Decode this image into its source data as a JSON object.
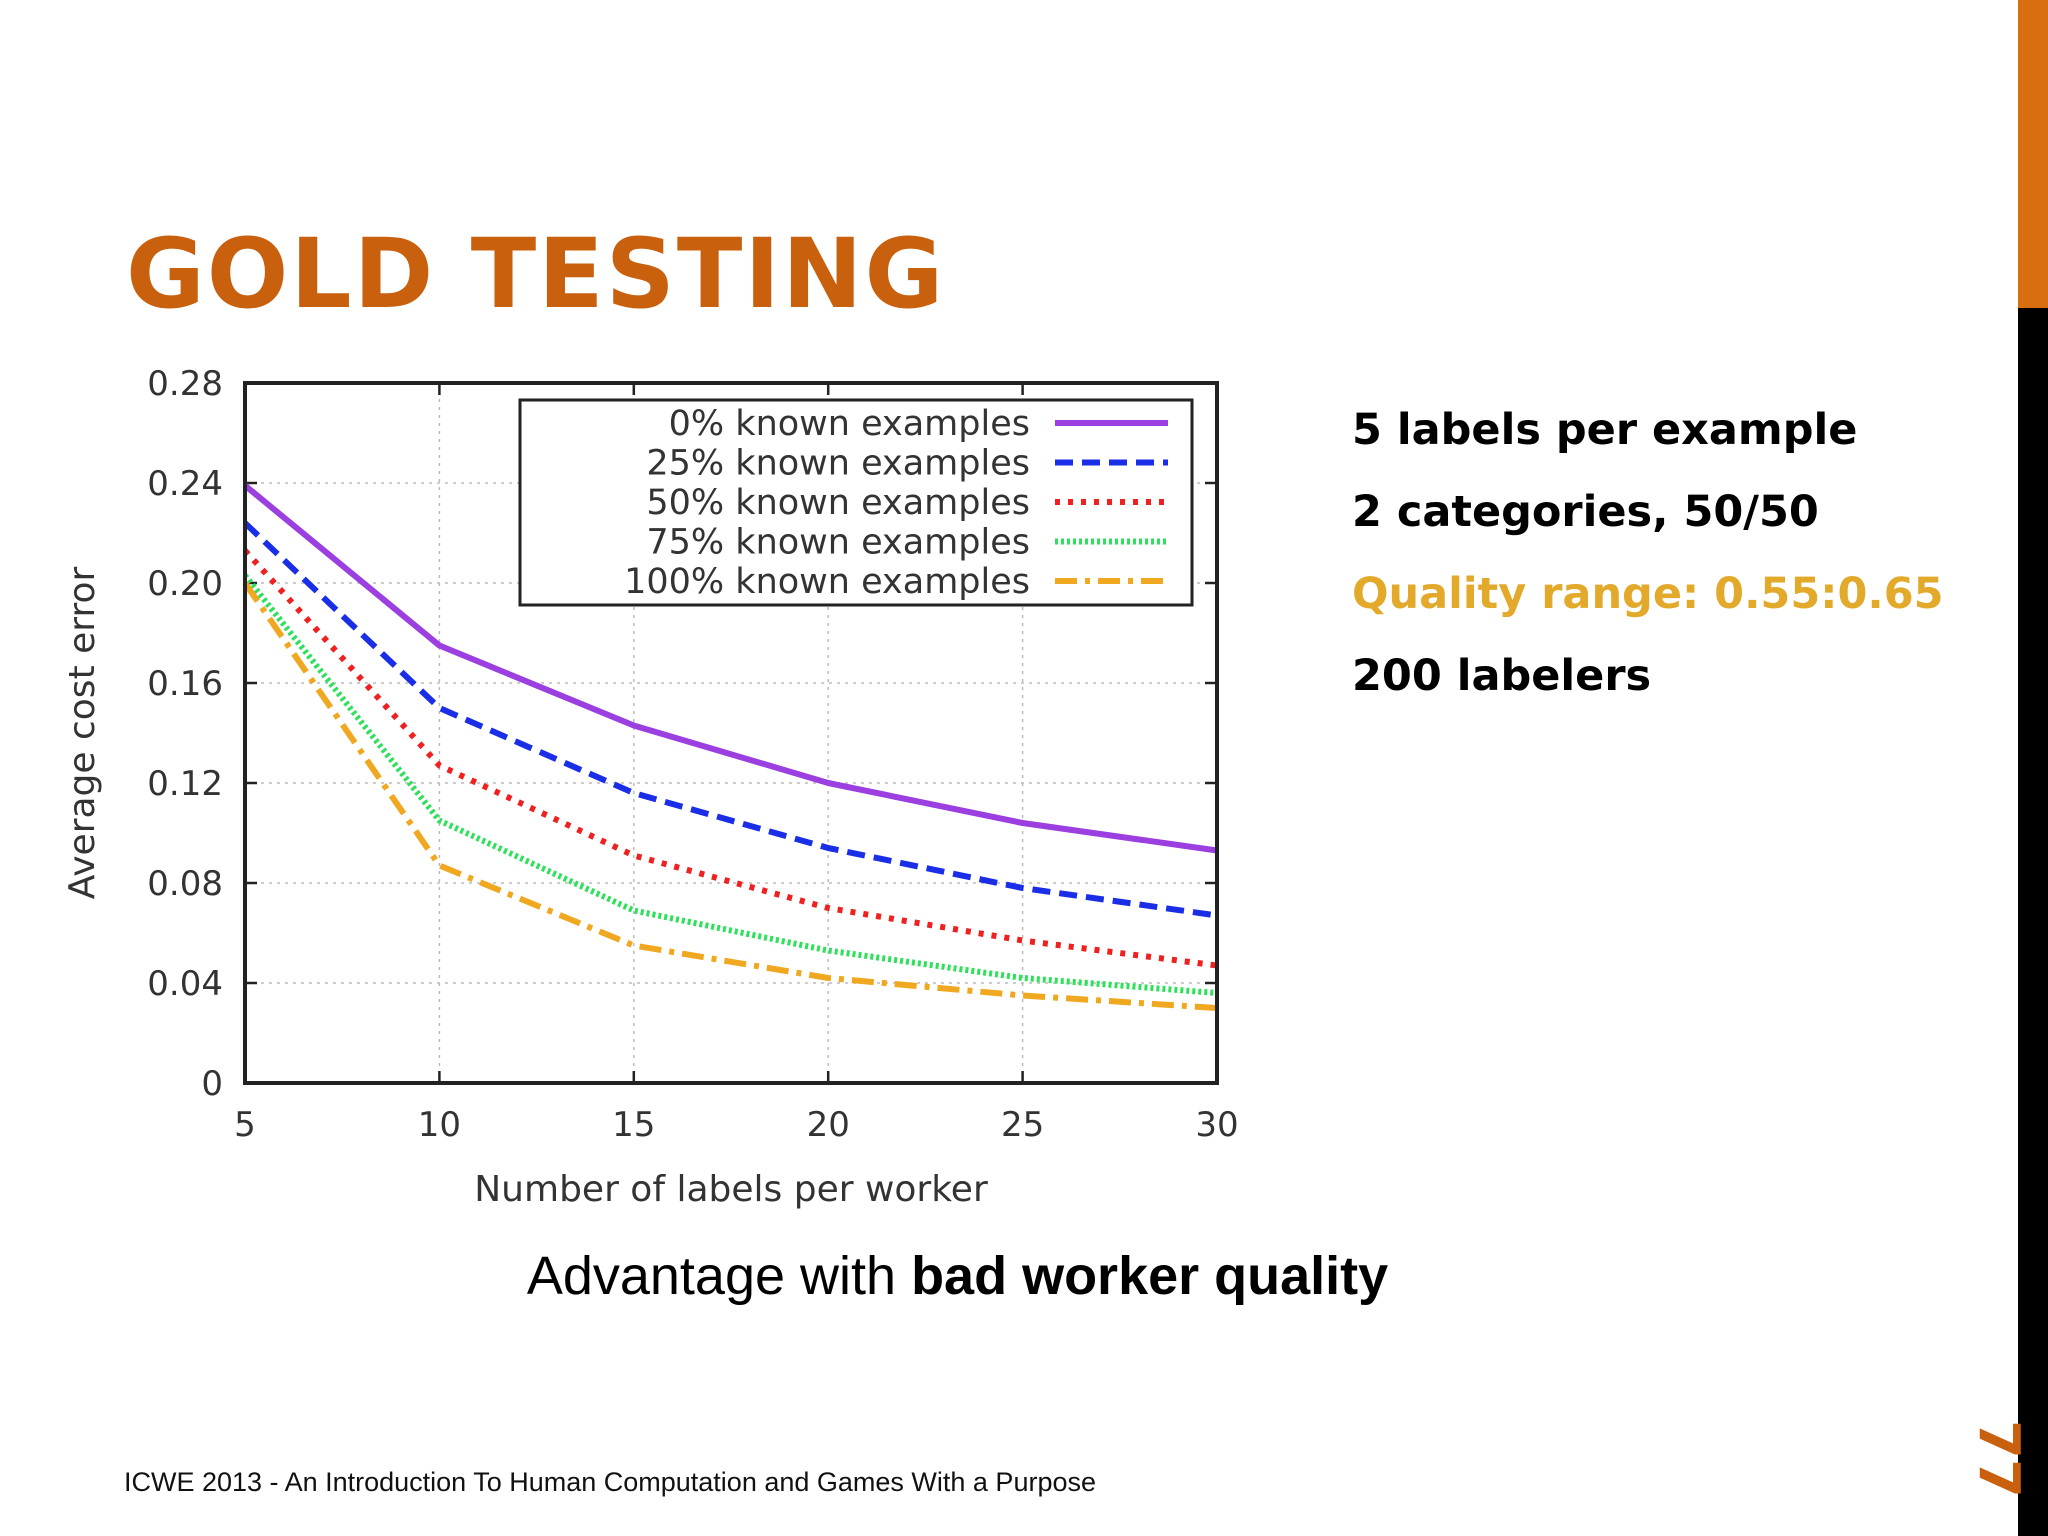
{
  "slide": {
    "title": "GOLD TESTING",
    "info_items": [
      {
        "text": "5 labels per example",
        "highlight": false
      },
      {
        "text": "2 categories, 50/50",
        "highlight": false
      },
      {
        "text": "Quality range: 0.55:0.65",
        "highlight": true
      },
      {
        "text": "200 labelers",
        "highlight": false
      }
    ],
    "caption_normal": "Advantage with ",
    "caption_bold": "bad worker quality",
    "footer": "ICWE 2013 - An Introduction To Human Computation and Games With a Purpose",
    "page_number": "77",
    "accent_color": "#d86e10",
    "highlight_color": "#e3a92b"
  },
  "chart_data": {
    "type": "line",
    "xlabel": "Number of labels per worker",
    "ylabel": "Average cost error",
    "xlim": [
      5,
      30
    ],
    "ylim": [
      0,
      0.28
    ],
    "x": [
      5,
      10,
      15,
      20,
      25,
      30
    ],
    "xticks": [
      "5",
      "10",
      "15",
      "20",
      "25",
      "30"
    ],
    "yticks": [
      "0",
      "0.04",
      "0.08",
      "0.12",
      "0.16",
      "0.20",
      "0.24",
      "0.28"
    ],
    "grid": true,
    "legend_position": "top-right",
    "series": [
      {
        "name": "0% known examples",
        "color": "#9b3fe0",
        "dash": "solid",
        "values": [
          0.239,
          0.175,
          0.143,
          0.12,
          0.104,
          0.093
        ]
      },
      {
        "name": "25% known examples",
        "color": "#1a2ee8",
        "dash": "dashed",
        "values": [
          0.224,
          0.15,
          0.116,
          0.094,
          0.078,
          0.067
        ]
      },
      {
        "name": "50% known examples",
        "color": "#ee2020",
        "dash": "dotted",
        "values": [
          0.213,
          0.127,
          0.091,
          0.07,
          0.057,
          0.047
        ]
      },
      {
        "name": "75% known examples",
        "color": "#2ee05a",
        "dash": "dense-dotted",
        "values": [
          0.203,
          0.105,
          0.069,
          0.053,
          0.042,
          0.036
        ]
      },
      {
        "name": "100% known examples",
        "color": "#f0a820",
        "dash": "dash-dot",
        "values": [
          0.2,
          0.087,
          0.055,
          0.042,
          0.035,
          0.03
        ]
      }
    ]
  }
}
